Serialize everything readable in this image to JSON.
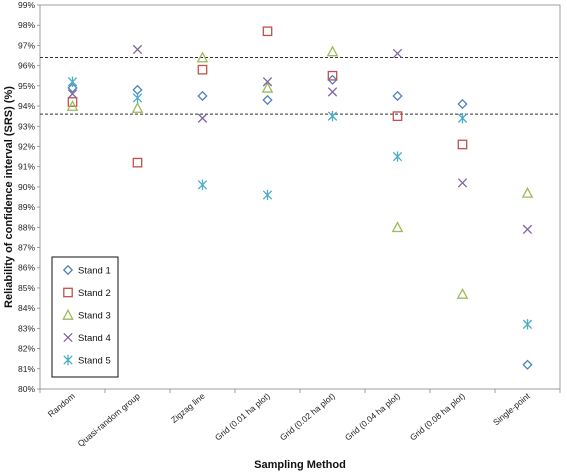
{
  "chart_data": {
    "type": "scatter",
    "xlabel": "Sampling Method",
    "ylabel": "Reliability of confidence interval (SRS) (%)",
    "categories": [
      "Random",
      "Quasi-random group",
      "Zigzag line",
      "Grid (0.01 ha plot)",
      "Grid (0.02 ha plot)",
      "Grid (0.04 ha plot)",
      "Grid (0.08 ha plot)",
      "Single-point"
    ],
    "ylim": [
      80,
      99
    ],
    "yticks": [
      "80%",
      "81%",
      "82%",
      "83%",
      "84%",
      "85%",
      "86%",
      "87%",
      "88%",
      "89%",
      "90%",
      "91%",
      "92%",
      "93%",
      "94%",
      "95%",
      "96%",
      "97%",
      "98%",
      "99%"
    ],
    "reference_lines": [
      96.4,
      93.6
    ],
    "legend_position": "bottom-left",
    "series": [
      {
        "name": "Stand 1",
        "marker": "diamond",
        "color": "#4F81BD",
        "values": [
          94.9,
          94.8,
          94.5,
          94.3,
          95.3,
          94.5,
          94.1,
          81.2
        ]
      },
      {
        "name": "Stand 2",
        "marker": "square",
        "color": "#C0504D",
        "values": [
          94.2,
          91.2,
          95.8,
          97.7,
          95.5,
          93.5,
          92.1,
          null
        ]
      },
      {
        "name": "Stand 3",
        "marker": "triangle",
        "color": "#9BBB59",
        "values": [
          94.0,
          93.9,
          96.4,
          94.9,
          96.7,
          88.0,
          84.7,
          89.7
        ]
      },
      {
        "name": "Stand 4",
        "marker": "x",
        "color": "#8064A2",
        "values": [
          94.6,
          96.8,
          93.4,
          95.2,
          94.7,
          96.6,
          90.2,
          87.9
        ]
      },
      {
        "name": "Stand 5",
        "marker": "star",
        "color": "#4BACC6",
        "values": [
          95.2,
          94.4,
          90.1,
          89.6,
          93.5,
          91.5,
          93.4,
          83.2
        ]
      }
    ]
  }
}
